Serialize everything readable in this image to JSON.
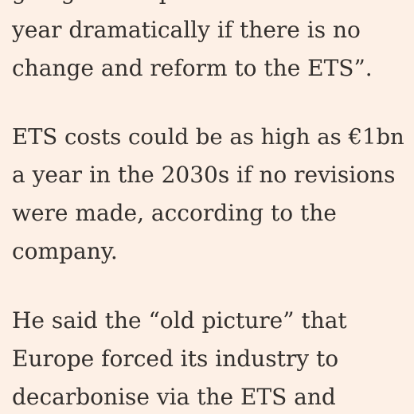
{
  "article": {
    "paragraphs": [
      {
        "lines": [
          "going to compound over the next",
          "year dramatically if there is no",
          "change and reform to the ETS”."
        ]
      },
      {
        "lines": [
          "ETS costs could be as high as €1bn",
          "a year in the 2030s if no revisions",
          "were made, according to the",
          "company."
        ]
      },
      {
        "lines": [
          "He said the “old picture” that",
          "Europe forced its industry to",
          "decarbonise via the ETS and"
        ]
      }
    ]
  }
}
